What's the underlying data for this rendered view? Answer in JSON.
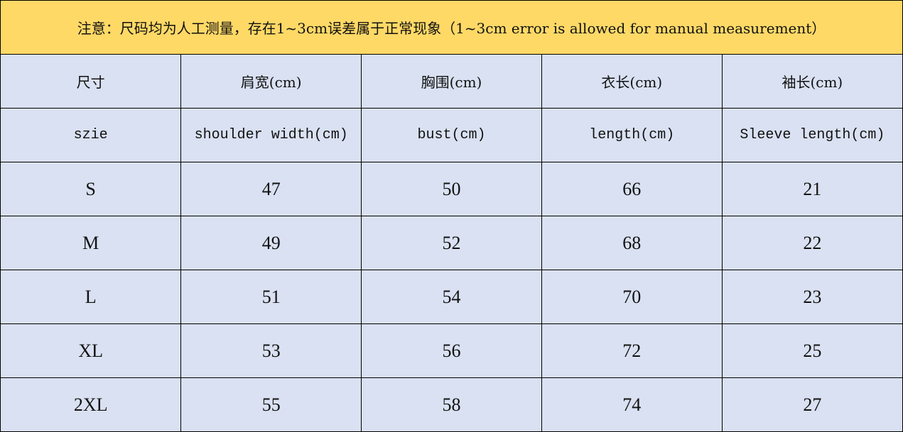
{
  "notice": "注意：尺码均为人工测量，存在1~3cm误差属于正常现象（1~3cm error is allowed for manual measurement）",
  "colors": {
    "notice_bg": "#FFD966",
    "cell_bg": "#D9E1F2"
  },
  "headers_cn": [
    "尺寸",
    "肩宽(cm)",
    "胸围(cm)",
    "衣长(cm)",
    "袖长(cm)"
  ],
  "headers_en": [
    "szie",
    "shoulder width(cm)",
    "bust(cm)",
    "length(cm)",
    "Sleeve length(cm)"
  ],
  "rows": [
    [
      "S",
      "47",
      "50",
      "66",
      "21"
    ],
    [
      "M",
      "49",
      "52",
      "68",
      "22"
    ],
    [
      "L",
      "51",
      "54",
      "70",
      "23"
    ],
    [
      "XL",
      "53",
      "56",
      "72",
      "25"
    ],
    [
      "2XL",
      "55",
      "58",
      "74",
      "27"
    ]
  ]
}
